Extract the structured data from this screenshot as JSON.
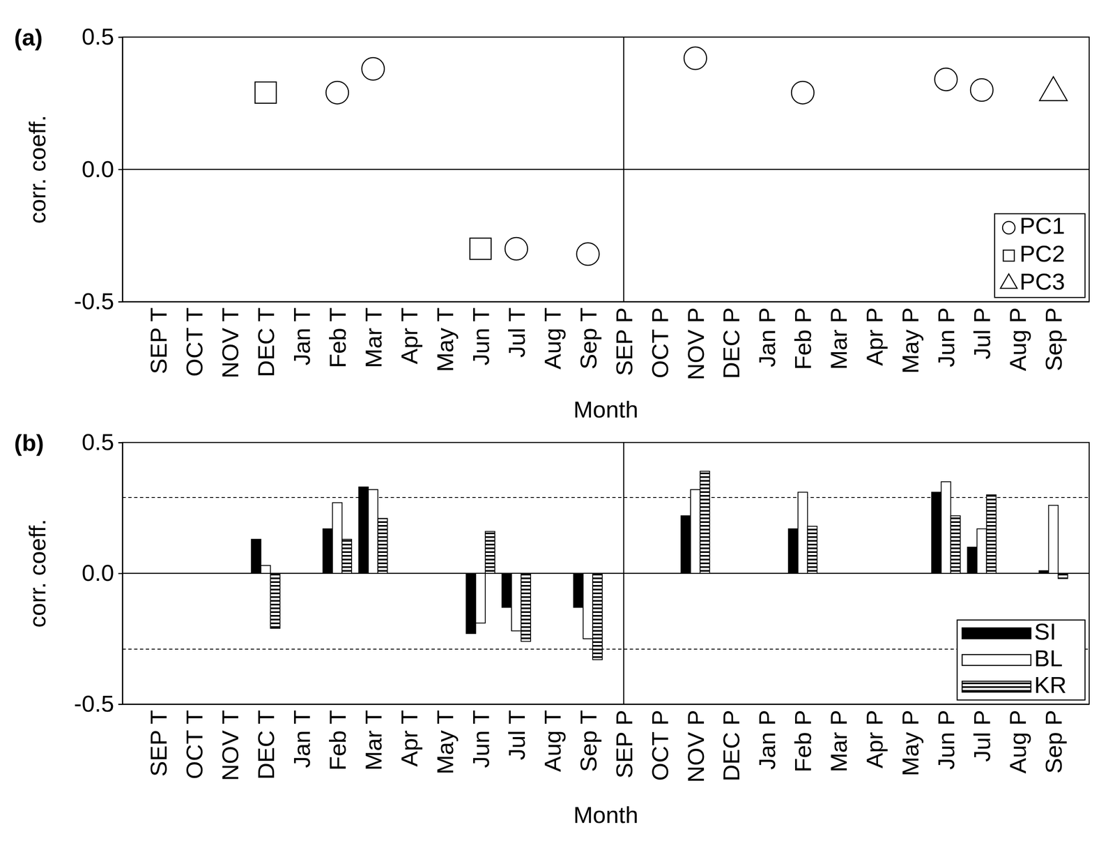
{
  "chart_data": [
    {
      "type": "scatter",
      "title": "(a)",
      "x_label": "Month",
      "y_label": "corr. coeff.",
      "categories": [
        "SEP T",
        "OCT T",
        "NOV T",
        "DEC T",
        "Jan T",
        "Feb T",
        "Mar T",
        "Apr T",
        "May T",
        "Jun T",
        "Jul T",
        "Aug T",
        "Sep T",
        "SEP P",
        "OCT P",
        "NOV P",
        "DEC P",
        "Jan P",
        "Feb P",
        "Mar P",
        "Apr P",
        "May P",
        "Jun P",
        "Jul P",
        "Aug P",
        "Sep P"
      ],
      "series": [
        {
          "name": "PC1",
          "color": "#000000",
          "marker": "circle",
          "values": [
            null,
            null,
            null,
            null,
            null,
            0.29,
            0.38,
            null,
            null,
            null,
            -0.3,
            null,
            -0.32,
            null,
            null,
            0.42,
            null,
            null,
            0.29,
            null,
            null,
            null,
            0.34,
            0.3,
            null,
            null
          ]
        },
        {
          "name": "PC2",
          "color": "#000000",
          "marker": "square",
          "values": [
            null,
            null,
            null,
            0.29,
            null,
            null,
            null,
            null,
            null,
            -0.3,
            null,
            null,
            null,
            null,
            null,
            null,
            null,
            null,
            null,
            null,
            null,
            null,
            null,
            null,
            null,
            null
          ]
        },
        {
          "name": "PC3",
          "color": "#000000",
          "marker": "triangle",
          "values": [
            null,
            null,
            null,
            null,
            null,
            null,
            null,
            null,
            null,
            null,
            null,
            null,
            null,
            null,
            null,
            null,
            null,
            null,
            null,
            null,
            null,
            null,
            null,
            null,
            null,
            0.29
          ]
        }
      ],
      "ylim": [
        -0.5,
        0.5
      ],
      "yticks": [
        -0.5,
        {
          "value": 0,
          "label": "0.0"
        },
        0.5
      ],
      "legend": "lower right"
    },
    {
      "type": "bar",
      "title": "(b)",
      "x_label": "Month",
      "y_label": "corr. coeff.",
      "categories": [
        "SEP T",
        "OCT T",
        "NOV T",
        "DEC T",
        "Jan T",
        "Feb T",
        "Mar T",
        "Apr T",
        "May T",
        "Jun T",
        "Jul T",
        "Aug T",
        "Sep T",
        "SEP P",
        "OCT P",
        "NOV P",
        "DEC P",
        "Jan P",
        "Feb P",
        "Mar P",
        "Apr P",
        "May P",
        "Jun P",
        "Jul P",
        "Aug P",
        "Sep P"
      ],
      "series": [
        {
          "name": "SI",
          "color": "#000000",
          "marker": "solid",
          "values": [
            null,
            null,
            null,
            0.13,
            null,
            0.17,
            0.33,
            null,
            null,
            -0.23,
            -0.13,
            null,
            -0.13,
            null,
            null,
            0.22,
            null,
            null,
            0.17,
            null,
            null,
            null,
            0.31,
            0.1,
            null,
            0.01
          ]
        },
        {
          "name": "BL",
          "color": "#ffffff",
          "marker": "solid",
          "values": [
            null,
            null,
            null,
            0.03,
            null,
            0.27,
            0.32,
            null,
            null,
            -0.19,
            -0.22,
            null,
            -0.25,
            null,
            null,
            0.32,
            null,
            null,
            0.31,
            null,
            null,
            null,
            0.35,
            0.17,
            null,
            0.26
          ]
        },
        {
          "name": "KR",
          "color": "#000000",
          "marker": "hatch",
          "values": [
            null,
            null,
            null,
            -0.21,
            null,
            0.13,
            0.21,
            null,
            null,
            0.16,
            -0.26,
            null,
            -0.33,
            null,
            null,
            0.39,
            null,
            null,
            0.18,
            null,
            null,
            null,
            0.22,
            0.3,
            null,
            -0.02
          ]
        }
      ],
      "reference_lines": [
        0.29,
        -0.29
      ],
      "ylim": [
        -0.5,
        0.5
      ],
      "yticks": [
        -0.5,
        {
          "value": 0,
          "label": "0.0"
        },
        0.5
      ],
      "legend": "lower right"
    }
  ]
}
